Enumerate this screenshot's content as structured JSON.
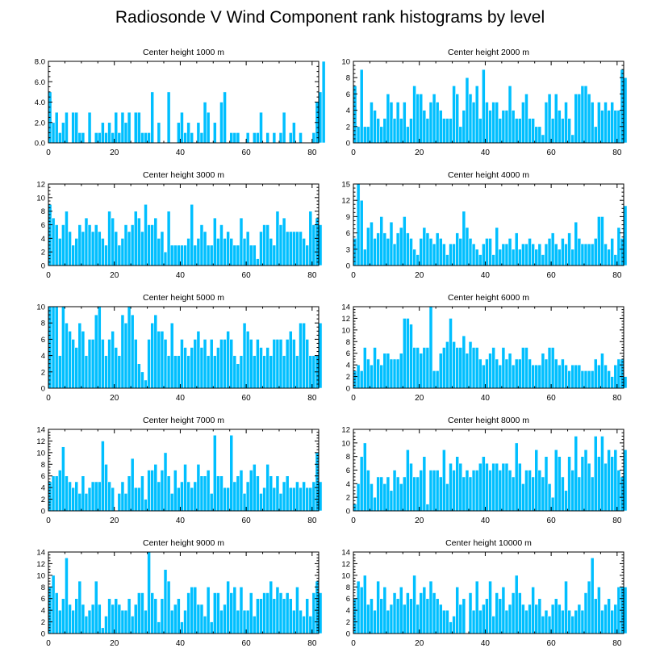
{
  "title": "Radiosonde V Wind Component rank histograms by level",
  "colors": {
    "bar": "#00bfff",
    "bar_edge": "#ffffff",
    "axis": "#000000"
  },
  "chart_data": [
    {
      "type": "bar",
      "title": "Center height 1000 m",
      "xlabel": "",
      "ylabel": "",
      "xlim": [
        0,
        82
      ],
      "ylim": [
        0,
        8
      ],
      "xticks": [
        0,
        20,
        40,
        60,
        80
      ],
      "xtick_labels": [
        "0",
        "20",
        "40",
        "60",
        "80"
      ],
      "yticks": [
        0,
        2,
        4,
        6,
        8
      ],
      "ytick_labels": [
        "0.0",
        "2.0",
        "4.0",
        "6.0",
        "8.0"
      ],
      "values": [
        5,
        2,
        3,
        1,
        2,
        3,
        0,
        3,
        3,
        1,
        1,
        0,
        3,
        0,
        1,
        1,
        2,
        1,
        2,
        1,
        3,
        1,
        3,
        2,
        3,
        0,
        3,
        3,
        1,
        1,
        1,
        5,
        0,
        2,
        0,
        0,
        5,
        0,
        0,
        2,
        3,
        1,
        2,
        1,
        0,
        2,
        1,
        4,
        3,
        0,
        2,
        0,
        4,
        5,
        0,
        1,
        1,
        1,
        0,
        0,
        1,
        0,
        1,
        1,
        3,
        0,
        1,
        0,
        1,
        0,
        1,
        3,
        0,
        1,
        2,
        0,
        1,
        0,
        0,
        0,
        1,
        4,
        5,
        8
      ]
    },
    {
      "type": "bar",
      "title": "Center height 2000 m",
      "xlabel": "",
      "ylabel": "",
      "xlim": [
        0,
        82
      ],
      "ylim": [
        0,
        10
      ],
      "xticks": [
        0,
        20,
        40,
        60,
        80
      ],
      "xtick_labels": [
        "0",
        "20",
        "40",
        "60",
        "80"
      ],
      "yticks": [
        0,
        2,
        4,
        6,
        8,
        10
      ],
      "ytick_labels": [
        "0",
        "2",
        "4",
        "6",
        "8",
        "10"
      ],
      "values": [
        7,
        2,
        9,
        2,
        2,
        5,
        4,
        3,
        2,
        3,
        6,
        5,
        3,
        5,
        3,
        5,
        2,
        3,
        7,
        6,
        6,
        4,
        3,
        5,
        6,
        5,
        4,
        3,
        3,
        3,
        7,
        6,
        2,
        4,
        8,
        6,
        5,
        7,
        3,
        9,
        5,
        4,
        5,
        5,
        3,
        4,
        4,
        7,
        4,
        3,
        3,
        5,
        6,
        3,
        3,
        2,
        2,
        1,
        5,
        6,
        3,
        6,
        4,
        3,
        5,
        3,
        1,
        6,
        6,
        7,
        7,
        6,
        5,
        2,
        5,
        4,
        5,
        4,
        5,
        4,
        4,
        9,
        8
      ]
    },
    {
      "type": "bar",
      "title": "Center height 3000 m",
      "xlabel": "",
      "ylabel": "",
      "xlim": [
        0,
        82
      ],
      "ylim": [
        0,
        12
      ],
      "xticks": [
        0,
        20,
        40,
        60,
        80
      ],
      "xtick_labels": [
        "0",
        "20",
        "40",
        "60",
        "80"
      ],
      "yticks": [
        0,
        2,
        4,
        6,
        8,
        10,
        12
      ],
      "ytick_labels": [
        "0",
        "2",
        "4",
        "6",
        "8",
        "10",
        "12"
      ],
      "values": [
        9,
        7,
        6,
        4,
        6,
        8,
        5,
        3,
        4,
        6,
        5,
        7,
        6,
        5,
        6,
        5,
        4,
        3,
        8,
        7,
        5,
        3,
        4,
        6,
        5,
        6,
        8,
        7,
        5,
        9,
        6,
        6,
        7,
        4,
        5,
        2,
        8,
        3,
        3,
        3,
        3,
        3,
        4,
        9,
        3,
        4,
        6,
        5,
        3,
        3,
        7,
        4,
        6,
        4,
        5,
        4,
        3,
        3,
        7,
        4,
        5,
        3,
        3,
        1,
        5,
        6,
        6,
        4,
        3,
        8,
        6,
        7,
        5,
        5,
        5,
        5,
        5,
        4,
        3,
        8,
        6,
        7,
        6
      ]
    },
    {
      "type": "bar",
      "title": "Center height 4000 m",
      "xlabel": "",
      "ylabel": "",
      "xlim": [
        0,
        82
      ],
      "ylim": [
        0,
        15
      ],
      "xticks": [
        0,
        20,
        40,
        60,
        80
      ],
      "xtick_labels": [
        "0",
        "20",
        "40",
        "60",
        "80"
      ],
      "yticks": [
        0,
        3,
        6,
        9,
        12,
        15
      ],
      "ytick_labels": [
        "0",
        "3",
        "6",
        "9",
        "12",
        "15"
      ],
      "values": [
        5,
        15,
        12,
        3,
        7,
        8,
        5,
        6,
        9,
        6,
        5,
        8,
        4,
        6,
        7,
        9,
        6,
        5,
        3,
        2,
        5,
        7,
        6,
        5,
        4,
        6,
        5,
        4,
        2,
        4,
        4,
        6,
        5,
        10,
        7,
        5,
        4,
        3,
        2,
        4,
        5,
        5,
        2,
        7,
        3,
        4,
        4,
        5,
        3,
        6,
        3,
        4,
        4,
        5,
        4,
        3,
        4,
        2,
        4,
        5,
        6,
        4,
        3,
        5,
        4,
        6,
        3,
        8,
        5,
        4,
        4,
        4,
        4,
        5,
        9,
        9,
        4,
        3,
        5,
        2,
        7,
        5,
        11
      ]
    },
    {
      "type": "bar",
      "title": "Center height 5000 m",
      "xlabel": "",
      "ylabel": "",
      "xlim": [
        0,
        82
      ],
      "ylim": [
        0,
        10
      ],
      "xticks": [
        0,
        20,
        40,
        60,
        80
      ],
      "xtick_labels": [
        "0",
        "20",
        "40",
        "60",
        "80"
      ],
      "yticks": [
        0,
        2,
        4,
        6,
        8,
        10
      ],
      "ytick_labels": [
        "0",
        "2",
        "4",
        "6",
        "8",
        "10"
      ],
      "values": [
        10,
        10,
        10,
        4,
        10,
        8,
        7,
        6,
        5,
        8,
        7,
        4,
        6,
        6,
        9,
        10,
        6,
        4,
        6,
        7,
        5,
        4,
        9,
        8,
        10,
        9,
        6,
        3,
        2,
        1,
        6,
        8,
        9,
        7,
        7,
        6,
        4,
        8,
        4,
        4,
        6,
        5,
        4,
        5,
        6,
        7,
        5,
        6,
        4,
        6,
        4,
        5,
        6,
        6,
        7,
        6,
        4,
        3,
        4,
        8,
        7,
        6,
        4,
        6,
        5,
        4,
        5,
        4,
        6,
        6,
        6,
        4,
        6,
        7,
        6,
        4,
        8,
        8,
        6,
        4,
        4,
        4,
        8
      ]
    },
    {
      "type": "bar",
      "title": "Center height 6000 m",
      "xlabel": "",
      "ylabel": "",
      "xlim": [
        0,
        82
      ],
      "ylim": [
        0,
        14
      ],
      "xticks": [
        0,
        20,
        40,
        60,
        80
      ],
      "xtick_labels": [
        "0",
        "20",
        "40",
        "60",
        "80"
      ],
      "yticks": [
        0,
        2,
        4,
        6,
        8,
        10,
        12,
        14
      ],
      "ytick_labels": [
        "0",
        "2",
        "4",
        "6",
        "8",
        "10",
        "12",
        "14"
      ],
      "values": [
        3,
        4,
        3,
        7,
        5,
        4,
        7,
        5,
        4,
        6,
        6,
        5,
        5,
        5,
        6,
        12,
        12,
        11,
        7,
        7,
        6,
        7,
        7,
        14,
        3,
        3,
        6,
        7,
        8,
        12,
        8,
        7,
        7,
        9,
        6,
        8,
        7,
        7,
        5,
        4,
        5,
        6,
        7,
        5,
        4,
        7,
        5,
        6,
        4,
        5,
        5,
        7,
        7,
        5,
        4,
        4,
        4,
        6,
        5,
        7,
        7,
        5,
        4,
        5,
        4,
        3,
        4,
        4,
        4,
        3,
        3,
        3,
        3,
        5,
        4,
        6,
        4,
        3,
        2,
        4,
        5,
        5,
        2
      ]
    },
    {
      "type": "bar",
      "title": "Center height 7000 m",
      "xlabel": "",
      "ylabel": "",
      "xlim": [
        0,
        82
      ],
      "ylim": [
        0,
        14
      ],
      "xticks": [
        0,
        20,
        40,
        60,
        80
      ],
      "xtick_labels": [
        "0",
        "20",
        "40",
        "60",
        "80"
      ],
      "yticks": [
        0,
        2,
        4,
        6,
        8,
        10,
        12,
        14
      ],
      "ytick_labels": [
        "0",
        "2",
        "4",
        "6",
        "8",
        "10",
        "12",
        "14"
      ],
      "values": [
        5,
        6,
        6,
        7,
        11,
        6,
        5,
        4,
        5,
        3,
        6,
        3,
        4,
        5,
        5,
        5,
        12,
        8,
        5,
        4,
        0,
        3,
        5,
        3,
        6,
        9,
        4,
        4,
        6,
        2,
        7,
        7,
        8,
        5,
        7,
        10,
        6,
        3,
        7,
        4,
        5,
        8,
        5,
        4,
        5,
        8,
        6,
        6,
        7,
        3,
        13,
        6,
        6,
        4,
        4,
        13,
        5,
        6,
        7,
        3,
        5,
        7,
        8,
        6,
        3,
        4,
        8,
        6,
        4,
        6,
        3,
        5,
        6,
        4,
        4,
        5,
        4,
        5,
        4,
        4,
        5,
        10,
        5
      ]
    },
    {
      "type": "bar",
      "title": "Center height 8000 m",
      "xlabel": "",
      "ylabel": "",
      "xlim": [
        0,
        82
      ],
      "ylim": [
        0,
        12
      ],
      "xticks": [
        0,
        20,
        40,
        60,
        80
      ],
      "xtick_labels": [
        "0",
        "20",
        "40",
        "60",
        "80"
      ],
      "yticks": [
        0,
        2,
        4,
        6,
        8,
        10,
        12
      ],
      "ytick_labels": [
        "0",
        "2",
        "4",
        "6",
        "8",
        "10",
        "12"
      ],
      "values": [
        1,
        4,
        8,
        10,
        6,
        4,
        2,
        5,
        5,
        4,
        5,
        3,
        6,
        5,
        4,
        5,
        9,
        7,
        5,
        5,
        6,
        8,
        1,
        6,
        6,
        6,
        5,
        9,
        4,
        7,
        6,
        8,
        7,
        5,
        6,
        5,
        6,
        6,
        7,
        8,
        7,
        6,
        7,
        7,
        6,
        7,
        7,
        6,
        5,
        10,
        7,
        4,
        6,
        6,
        5,
        9,
        6,
        5,
        8,
        4,
        2,
        9,
        8,
        5,
        3,
        8,
        6,
        11,
        5,
        8,
        9,
        7,
        5,
        11,
        8,
        11,
        7,
        9,
        8,
        9,
        6,
        5,
        9
      ]
    },
    {
      "type": "bar",
      "title": "Center height 9000 m",
      "xlabel": "",
      "ylabel": "",
      "xlim": [
        0,
        82
      ],
      "ylim": [
        0,
        14
      ],
      "xticks": [
        0,
        20,
        40,
        60,
        80
      ],
      "xtick_labels": [
        "0",
        "20",
        "40",
        "60",
        "80"
      ],
      "yticks": [
        0,
        2,
        4,
        6,
        8,
        10,
        12,
        14
      ],
      "ytick_labels": [
        "0",
        "2",
        "4",
        "6",
        "8",
        "10",
        "12",
        "14"
      ],
      "values": [
        8,
        10,
        7,
        4,
        6,
        13,
        5,
        4,
        6,
        9,
        5,
        3,
        4,
        5,
        9,
        5,
        1,
        3,
        6,
        5,
        6,
        5,
        4,
        4,
        6,
        3,
        5,
        7,
        7,
        4,
        14,
        7,
        6,
        2,
        6,
        11,
        9,
        4,
        5,
        6,
        2,
        4,
        7,
        8,
        8,
        5,
        5,
        3,
        8,
        2,
        7,
        7,
        4,
        5,
        9,
        7,
        8,
        4,
        8,
        4,
        4,
        7,
        3,
        6,
        6,
        7,
        7,
        9,
        6,
        8,
        7,
        6,
        7,
        6,
        4,
        8,
        4,
        3,
        6,
        3,
        7,
        9,
        7
      ]
    },
    {
      "type": "bar",
      "title": "Center height 10000 m",
      "xlabel": "",
      "ylabel": "",
      "xlim": [
        0,
        82
      ],
      "ylim": [
        0,
        14
      ],
      "xticks": [
        0,
        20,
        40,
        60,
        80
      ],
      "xtick_labels": [
        "0",
        "20",
        "40",
        "60",
        "80"
      ],
      "yticks": [
        0,
        2,
        4,
        6,
        8,
        10,
        12,
        14
      ],
      "ytick_labels": [
        "0",
        "2",
        "4",
        "6",
        "8",
        "10",
        "12",
        "14"
      ],
      "values": [
        6,
        9,
        8,
        10,
        5,
        6,
        4,
        9,
        6,
        8,
        4,
        5,
        7,
        6,
        8,
        5,
        7,
        6,
        10,
        5,
        7,
        8,
        6,
        9,
        7,
        6,
        5,
        4,
        4,
        2,
        3,
        8,
        5,
        6,
        0,
        7,
        4,
        9,
        4,
        5,
        6,
        9,
        3,
        7,
        6,
        8,
        4,
        5,
        7,
        10,
        7,
        5,
        4,
        5,
        8,
        5,
        6,
        3,
        4,
        3,
        5,
        6,
        5,
        4,
        9,
        4,
        3,
        4,
        5,
        4,
        7,
        9,
        13,
        6,
        8,
        4,
        5,
        6,
        4,
        5,
        8,
        8,
        8
      ]
    }
  ]
}
